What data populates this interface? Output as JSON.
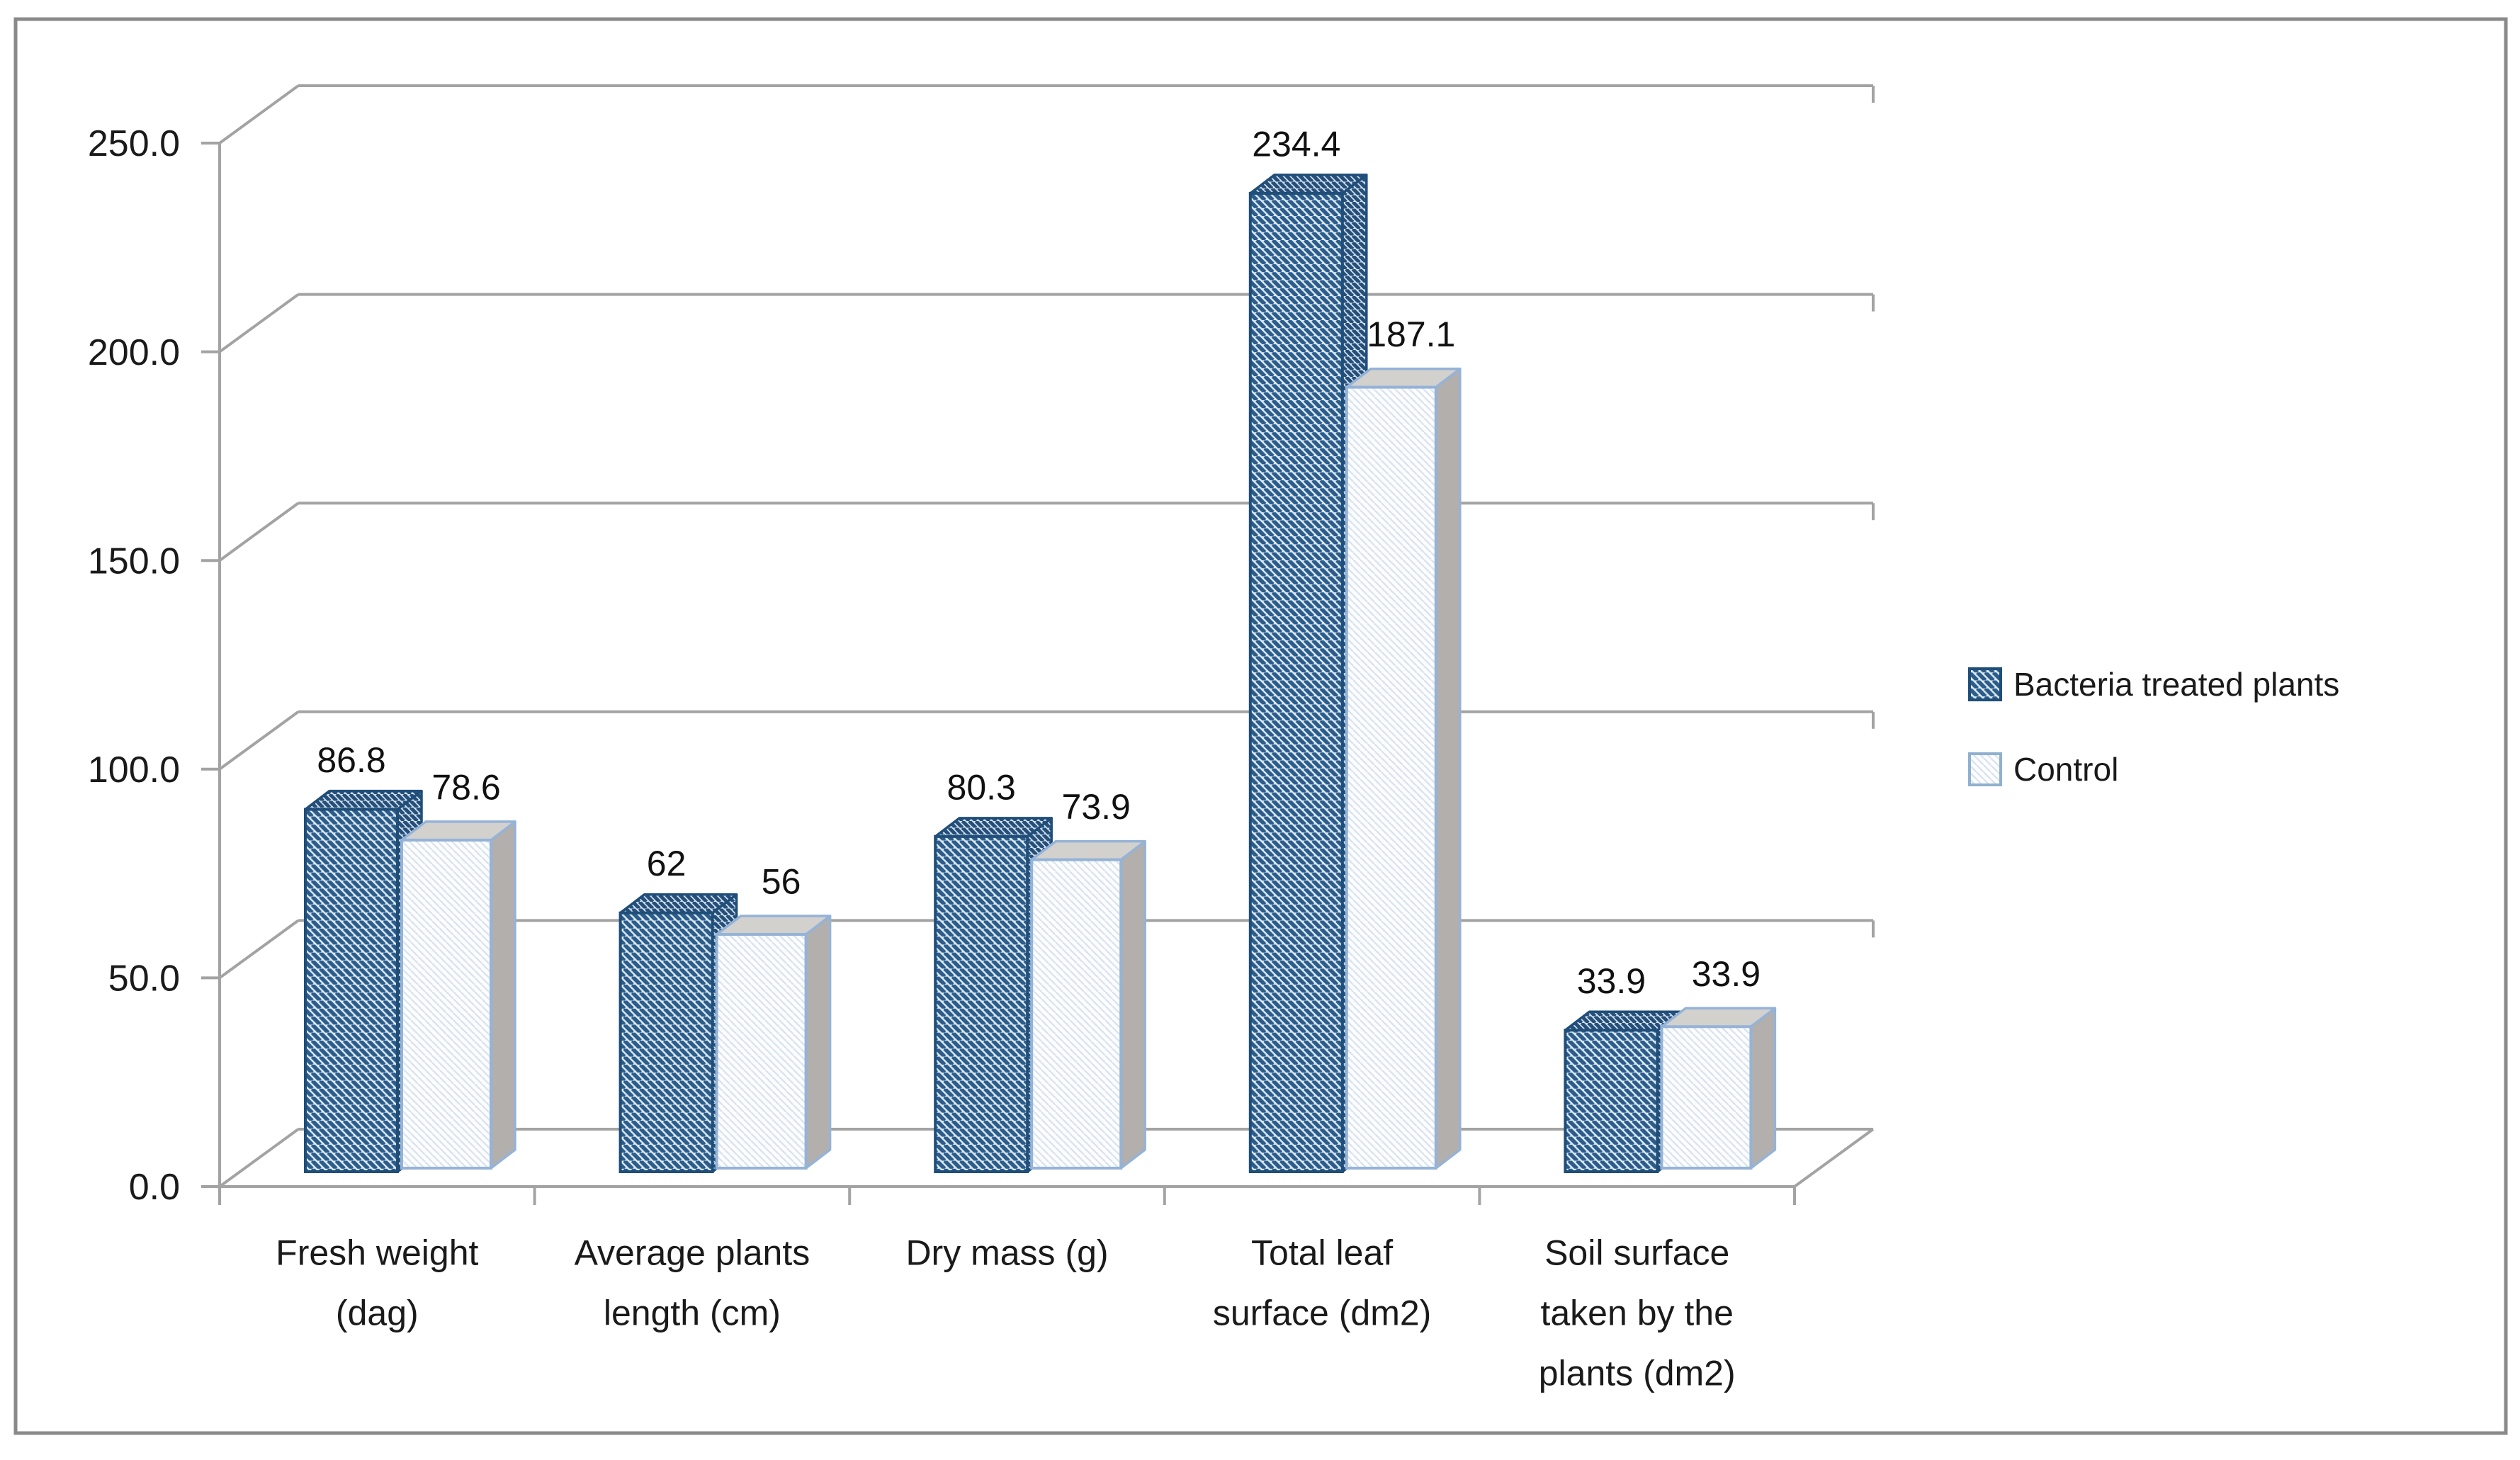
{
  "chart_data": {
    "type": "bar",
    "subtype": "3d-clustered-column",
    "title": "",
    "xlabel": "",
    "ylabel": "",
    "categories": [
      "Fresh weight (dag)",
      "Average plants length (cm)",
      "Dry mass (g)",
      "Total leaf surface (dm2)",
      "Soil surface taken by the plants (dm2)"
    ],
    "category_label_lines": [
      [
        "Fresh weight",
        "(dag)"
      ],
      [
        "Average plants",
        "length (cm)"
      ],
      [
        "Dry mass (g)"
      ],
      [
        "Total leaf",
        "surface (dm2)"
      ],
      [
        "Soil surface",
        "taken by the",
        "plants (dm2)"
      ]
    ],
    "series": [
      {
        "name": "Bacteria treated plants",
        "values": [
          86.8,
          62,
          80.3,
          234.4,
          33.9
        ],
        "data_labels": [
          "86.8",
          "62",
          "80.3",
          "234.4",
          "33.9"
        ],
        "swatch": "dark-blue-diagonal-hatch"
      },
      {
        "name": "Control",
        "values": [
          78.6,
          56,
          73.9,
          187.1,
          33.9
        ],
        "data_labels": [
          "78.6",
          "56",
          "73.9",
          "187.1",
          "33.9"
        ],
        "swatch": "white-faint-hatch"
      }
    ],
    "ylim": [
      0,
      250
    ],
    "ytick_interval": 50,
    "ytick_labels": [
      "0.0",
      "50.0",
      "100.0",
      "150.0",
      "200.0",
      "250.0"
    ],
    "grid": true,
    "legend_position": "middle-right"
  },
  "colors": {
    "series1_hatch": "#2c5c8a",
    "series1_outline": "#1f4e79",
    "series1_hatch_bg": "#ddeaf6",
    "series2_hatch": "#d9e4f0",
    "series2_outline": "#a4bdd6",
    "series2_edge": "#95b3d7",
    "series2_top": "#d2d1ce",
    "series2_side": "#b2afac",
    "gridline": "#a3a3a3",
    "text": "#1a1a1a",
    "border": "#8a8a8a",
    "background": "#ffffff"
  }
}
